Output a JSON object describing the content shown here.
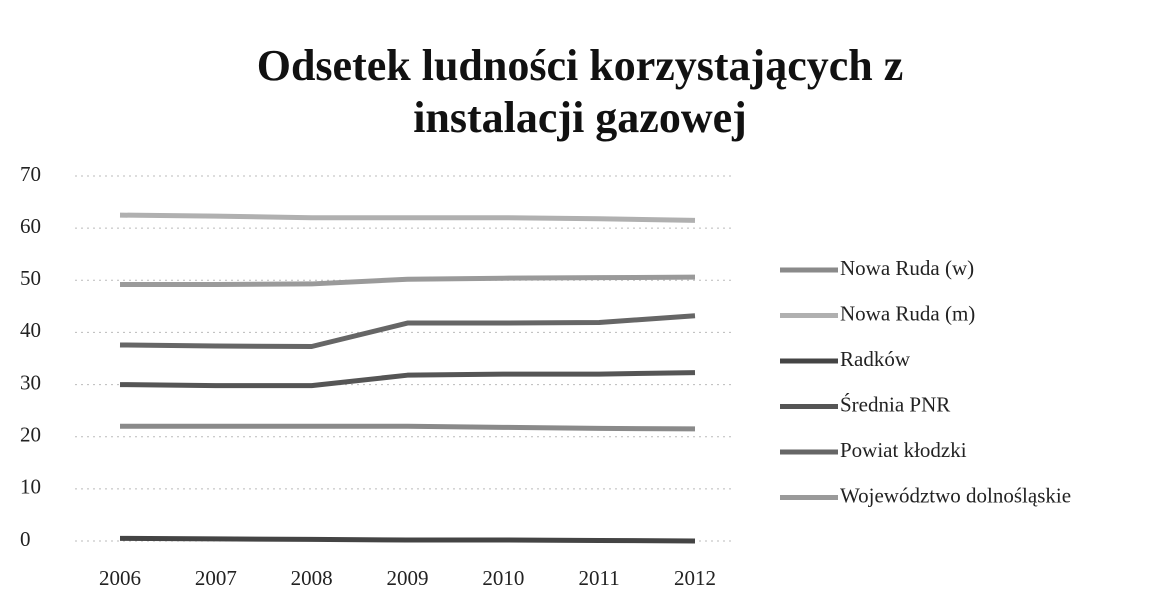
{
  "chart_data": {
    "type": "line",
    "title": "Odsetek ludności korzystających z instalacji gazowej",
    "categories": [
      "2006",
      "2007",
      "2008",
      "2009",
      "2010",
      "2011",
      "2012"
    ],
    "series": [
      {
        "name": "Nowa Ruda (w)",
        "color": "#8a8a8a",
        "values": [
          22,
          22,
          22,
          22,
          21.8,
          21.6,
          21.5
        ]
      },
      {
        "name": "Nowa Ruda (m)",
        "color": "#b0b0b0",
        "values": [
          62.5,
          62.3,
          62,
          62,
          62,
          61.8,
          61.5
        ]
      },
      {
        "name": "Radków",
        "color": "#444444",
        "values": [
          0.5,
          0.4,
          0.3,
          0.2,
          0.2,
          0.1,
          0
        ]
      },
      {
        "name": "Średnia PNR",
        "color": "#555555",
        "values": [
          30,
          29.8,
          29.8,
          31.8,
          32,
          32,
          32.3
        ]
      },
      {
        "name": "Powiat kłodzki",
        "color": "#666666",
        "values": [
          37.6,
          37.4,
          37.3,
          41.8,
          41.8,
          41.9,
          43.2
        ]
      },
      {
        "name": "Województwo dolnośląskie",
        "color": "#9a9a9a",
        "values": [
          49.2,
          49.2,
          49.3,
          50.2,
          50.4,
          50.5,
          50.6
        ]
      }
    ],
    "ylim": [
      0,
      70
    ],
    "yticks": [
      0,
      10,
      20,
      30,
      40,
      50,
      60,
      70
    ],
    "grid": true
  }
}
